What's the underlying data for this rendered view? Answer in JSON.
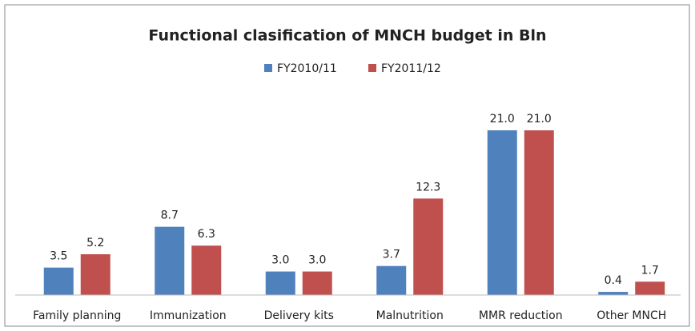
{
  "chart_data": {
    "type": "bar",
    "title": "Functional clasification of MNCH budget in Bln",
    "categories": [
      "Family planning",
      "Immunization",
      "Delivery kits",
      "Malnutrition",
      "MMR reduction",
      "Other MNCH"
    ],
    "series": [
      {
        "name": "FY2010/11",
        "color": "#4f81bd",
        "values": [
          3.5,
          8.7,
          3.0,
          3.7,
          21.0,
          0.4
        ],
        "value_labels": [
          "3.5",
          "8.7",
          "3.0",
          "3.7",
          "21.0",
          "0.4"
        ]
      },
      {
        "name": "FY2011/12",
        "color": "#c0504d",
        "values": [
          5.2,
          6.3,
          3.0,
          12.3,
          21.0,
          1.7
        ],
        "value_labels": [
          "5.2",
          "6.3",
          "3.0",
          "12.3",
          "21.0",
          "1.7"
        ]
      }
    ],
    "legend": "top"
  }
}
